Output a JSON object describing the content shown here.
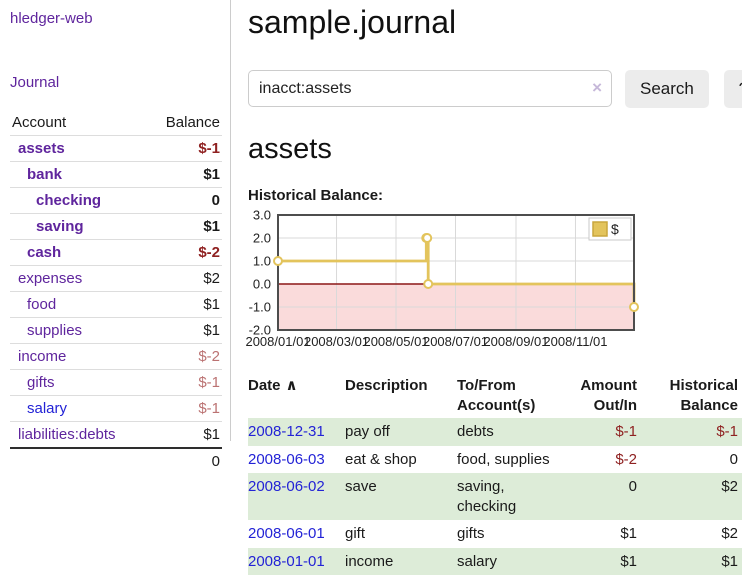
{
  "colors": {
    "accent_purple": "#5f259d",
    "link_blue": "#2323d6",
    "negative_strong": "#8f2121",
    "negative_muted": "#bb7272",
    "row_stripe_green": "#ddecd8",
    "chart_line_gold": "#e3c45c",
    "chart_fill_pink": "#fadbdb",
    "chart_zero_line_red": "#8c1717"
  },
  "sidebar": {
    "brand": "hledger-web",
    "journal_link": "Journal",
    "accounts_header": {
      "account": "Account",
      "balance": "Balance"
    },
    "accounts": [
      {
        "name": "assets",
        "depth": 0,
        "bold": true,
        "balance": "$-1"
      },
      {
        "name": "bank",
        "depth": 1,
        "bold": true,
        "balance": "$1"
      },
      {
        "name": "checking",
        "depth": 2,
        "bold": true,
        "balance": "0"
      },
      {
        "name": "saving",
        "depth": 2,
        "bold": true,
        "balance": "$1"
      },
      {
        "name": "cash",
        "depth": 1,
        "bold": true,
        "balance": "$-2"
      },
      {
        "name": "expenses",
        "depth": 0,
        "bold": false,
        "balance": "$2"
      },
      {
        "name": "food",
        "depth": 1,
        "bold": false,
        "balance": "$1"
      },
      {
        "name": "supplies",
        "depth": 1,
        "bold": false,
        "balance": "$1"
      },
      {
        "name": "income",
        "depth": 0,
        "bold": false,
        "balance": "$-2"
      },
      {
        "name": "gifts",
        "depth": 1,
        "bold": false,
        "balance": "$-1"
      },
      {
        "name": "salary",
        "depth": 1,
        "bold": false,
        "balance": "$-1",
        "blue": true
      },
      {
        "name": "liabilities:debts",
        "depth": 0,
        "bold": false,
        "balance": "$1"
      }
    ],
    "total": "0"
  },
  "header": {
    "title": "sample.journal"
  },
  "search": {
    "query": "inacct:assets",
    "clear_icon": "×",
    "button_label": "Search",
    "help_label": "?"
  },
  "main": {
    "heading": "assets",
    "chart_label": "Historical Balance:"
  },
  "chart_data": {
    "type": "line",
    "title": "Historical Balance",
    "x_range": [
      "2008-01-01",
      "2008-12-31"
    ],
    "ylim": [
      -2,
      3
    ],
    "yticks": [
      3,
      2,
      1,
      0,
      -1,
      -2
    ],
    "xtick_labels": [
      "2008/01/01",
      "2008/03/01",
      "2008/05/01",
      "2008/07/01",
      "2008/09/01",
      "2008/11/01"
    ],
    "xtick_dates": [
      "2008-01-01",
      "2008-03-01",
      "2008-05-01",
      "2008-07-01",
      "2008-09-01",
      "2008-11-01"
    ],
    "series": [
      {
        "name": "$",
        "points": [
          {
            "date": "2008-01-01",
            "value": 1
          },
          {
            "date": "2008-06-01",
            "value": 2
          },
          {
            "date": "2008-06-02",
            "value": 2
          },
          {
            "date": "2008-06-03",
            "value": 0
          },
          {
            "date": "2008-12-31",
            "value": -1
          }
        ]
      }
    ],
    "legend_position": "top-right",
    "negative_region_shaded": true,
    "grid": true
  },
  "transactions": {
    "columns": [
      "Date",
      "Description",
      "To/From Account(s)",
      "Amount Out/In",
      "Historical Balance"
    ],
    "sort_indicator": "∧",
    "rows": [
      {
        "date": "2008-12-31",
        "description": "pay off",
        "accounts": "debts",
        "amount": "$-1",
        "balance": "$-1"
      },
      {
        "date": "2008-06-03",
        "description": "eat & shop",
        "accounts": "food, supplies",
        "amount": "$-2",
        "balance": "0"
      },
      {
        "date": "2008-06-02",
        "description": "save",
        "accounts": "saving, checking",
        "amount": "0",
        "balance": "$2"
      },
      {
        "date": "2008-06-01",
        "description": "gift",
        "accounts": "gifts",
        "amount": "$1",
        "balance": "$2"
      },
      {
        "date": "2008-01-01",
        "description": "income",
        "accounts": "salary",
        "amount": "$1",
        "balance": "$1"
      }
    ]
  }
}
